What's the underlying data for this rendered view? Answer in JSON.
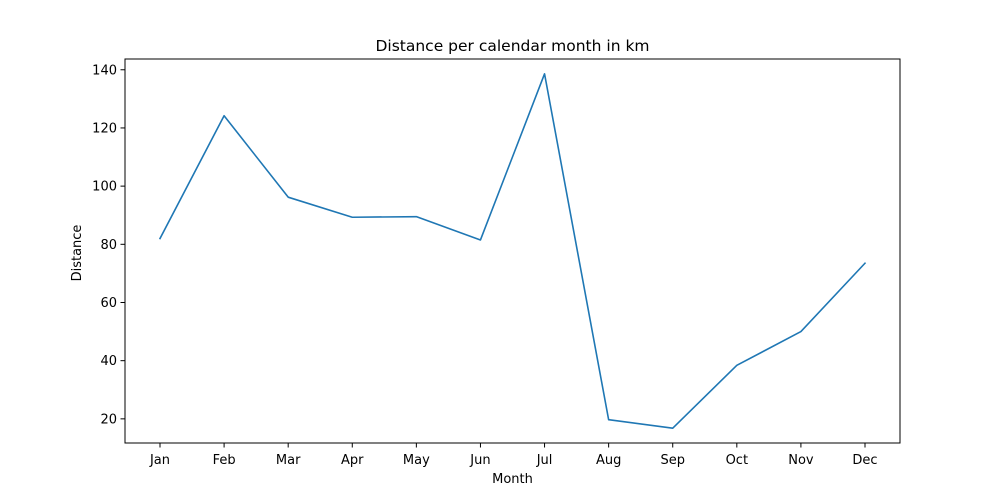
{
  "chart_data": {
    "type": "line",
    "title": "Distance per calendar month in km",
    "xlabel": "Month",
    "ylabel": "Distance",
    "categories": [
      "Jan",
      "Feb",
      "Mar",
      "Apr",
      "May",
      "Jun",
      "Jul",
      "Aug",
      "Sep",
      "Oct",
      "Nov",
      "Dec"
    ],
    "series": [
      {
        "values": [
          82.0,
          124.2,
          96.2,
          89.3,
          89.5,
          81.5,
          138.6,
          19.7,
          16.8,
          38.4,
          50.0,
          73.5
        ],
        "color": "#1f77b4"
      }
    ],
    "yticks": [
      20,
      40,
      60,
      80,
      100,
      120,
      140
    ],
    "ylim": [
      11.7,
      143.7
    ],
    "grid": false,
    "legend": "none"
  }
}
